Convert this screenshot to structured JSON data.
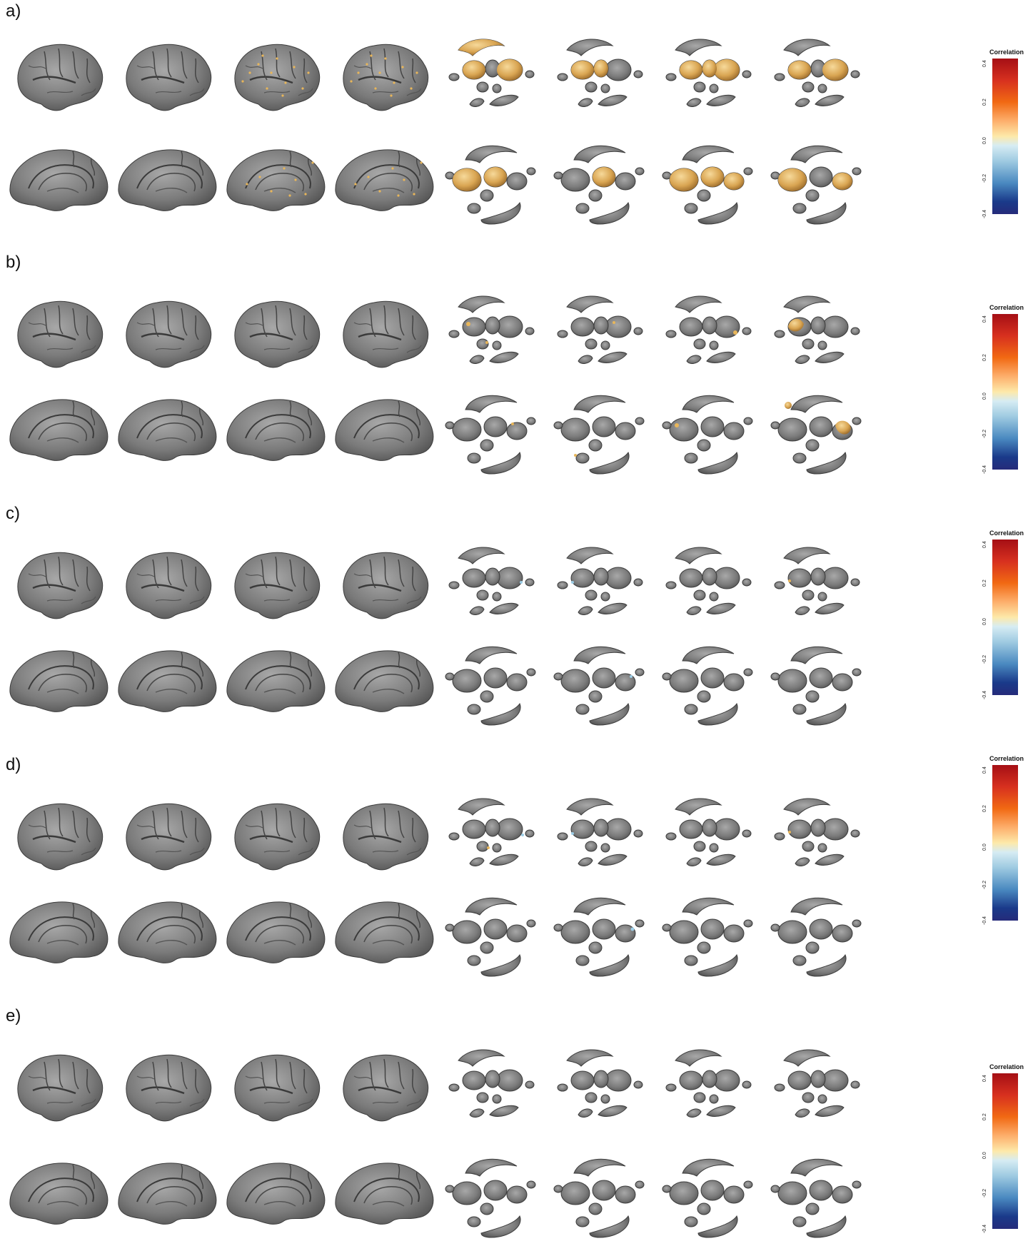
{
  "panels": [
    {
      "label": "a)"
    },
    {
      "label": "b)"
    },
    {
      "label": "c)"
    },
    {
      "label": "d)"
    },
    {
      "label": "e)"
    }
  ],
  "colorbar": {
    "title": "Correlation",
    "ticks": [
      "0.4",
      "0.2",
      "0.0",
      "-0.2",
      "-0.4"
    ],
    "range": [
      -0.4,
      0.4
    ]
  },
  "colors": {
    "surface": "#8a8a8a",
    "positive_highlight": "#e8b65a",
    "negative_highlight": "#9ccde6"
  }
}
